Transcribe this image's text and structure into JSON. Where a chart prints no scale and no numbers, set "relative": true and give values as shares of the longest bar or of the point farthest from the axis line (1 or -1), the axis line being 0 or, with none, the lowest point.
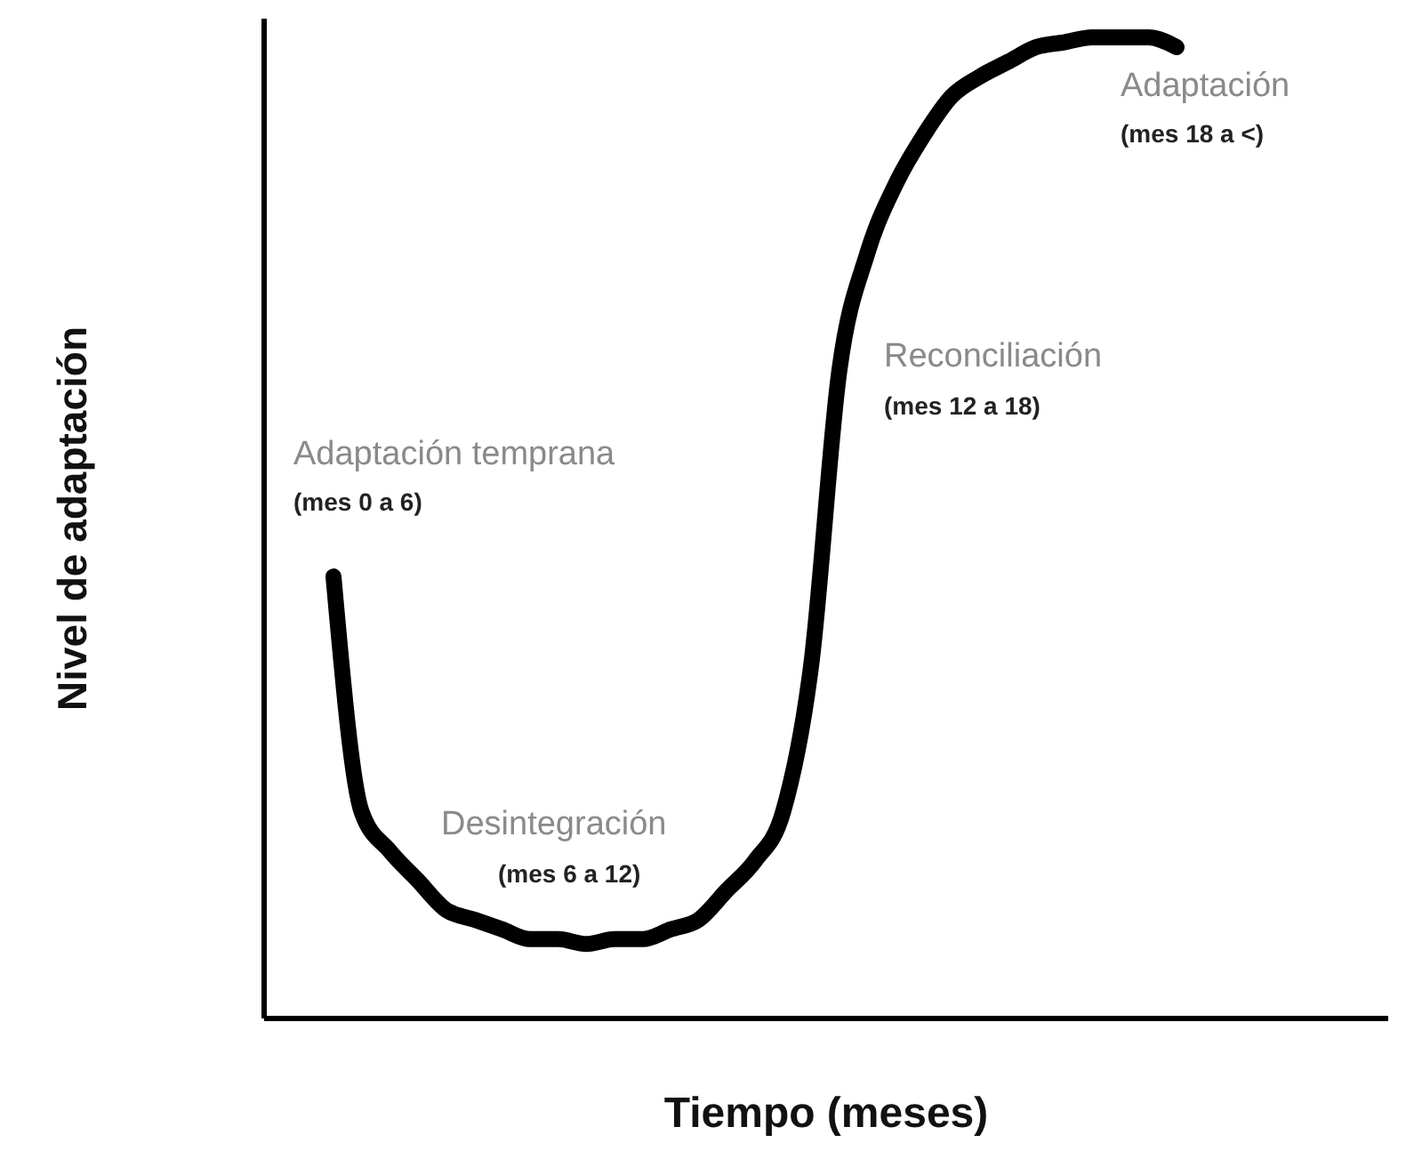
{
  "chart_data": {
    "type": "line",
    "relative": true,
    "xlabel": "Tiempo (meses)",
    "ylabel": "Nivel de adaptación",
    "color": "#000000",
    "line_style": "solid",
    "grid": false,
    "categories": [
      null,
      null,
      null,
      null,
      null,
      null,
      null,
      null,
      null,
      null,
      null,
      null,
      null,
      null,
      null,
      null,
      null,
      null,
      null,
      null,
      null,
      null,
      null,
      null,
      null,
      null,
      null,
      null,
      null,
      null,
      null,
      null,
      null,
      null,
      null,
      null,
      null,
      null,
      null,
      null
    ],
    "values": [
      null,
      null,
      0.45,
      0.21,
      0.17,
      0.14,
      0.11,
      0.1,
      0.09,
      0.08,
      0.08,
      0.075,
      0.08,
      0.08,
      0.09,
      0.1,
      0.13,
      0.16,
      0.21,
      0.36,
      0.66,
      0.78,
      0.85,
      0.9,
      0.94,
      0.96,
      0.975,
      0.99,
      0.995,
      1.0,
      1.0,
      1.0,
      0.99,
      null,
      null,
      null,
      null,
      null,
      null,
      null
    ],
    "annotations": [
      "Adaptación temprana",
      "(mes 0 a 6)",
      "Desintegración",
      "(mes 6 a 12)",
      "Reconciliación",
      "(mes 12 a 18)",
      "Adaptación",
      "(mes 18 a <)"
    ]
  }
}
